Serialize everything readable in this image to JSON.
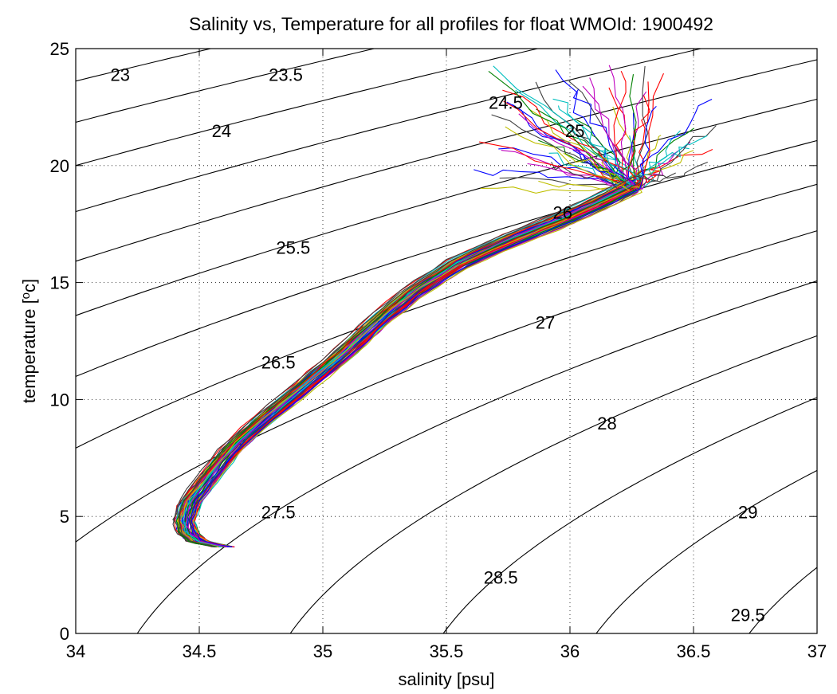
{
  "chart_data": {
    "type": "line",
    "title": "Salinity vs, Temperature for all profiles for float WMOId: 1900492",
    "xlabel": "salinity [psu]",
    "ylabel_parts": [
      "temperature [",
      "o",
      "c]"
    ],
    "xlim": [
      34,
      37
    ],
    "ylim": [
      0,
      25
    ],
    "xticks": [
      34,
      34.5,
      35,
      35.5,
      36,
      36.5,
      37
    ],
    "xtick_labels": [
      "34",
      "34.5",
      "35",
      "35.5",
      "36",
      "36.5",
      "37"
    ],
    "yticks": [
      0,
      5,
      10,
      15,
      20,
      25
    ],
    "ytick_labels": [
      "0",
      "5",
      "10",
      "15",
      "20",
      "25"
    ],
    "grid": true,
    "grid_style": "dotted",
    "density_contours": [
      {
        "sigma": 23,
        "label": "23",
        "label_pos": [
          34.18,
          23.9
        ]
      },
      {
        "sigma": 23.5,
        "label": "23.5",
        "label_pos": [
          34.85,
          23.9
        ]
      },
      {
        "sigma": 24,
        "label": "24",
        "label_pos": [
          34.59,
          21.5
        ]
      },
      {
        "sigma": 24.5,
        "label": "24.5",
        "label_pos": [
          35.74,
          22.7
        ]
      },
      {
        "sigma": 25,
        "label": "25",
        "label_pos": [
          36.02,
          21.5
        ]
      },
      {
        "sigma": 25.5,
        "label": "25.5",
        "label_pos": [
          34.88,
          16.5
        ]
      },
      {
        "sigma": 26,
        "label": "26",
        "label_pos": [
          35.97,
          18.0
        ]
      },
      {
        "sigma": 26.5,
        "label": "26.5",
        "label_pos": [
          34.82,
          11.6
        ]
      },
      {
        "sigma": 27,
        "label": "27",
        "label_pos": [
          35.9,
          13.3
        ]
      },
      {
        "sigma": 27.5,
        "label": "27.5",
        "label_pos": [
          34.82,
          5.2
        ]
      },
      {
        "sigma": 28,
        "label": "28",
        "label_pos": [
          36.15,
          9.0
        ]
      },
      {
        "sigma": 28.5,
        "label": "28.5",
        "label_pos": [
          35.72,
          2.4
        ]
      },
      {
        "sigma": 29,
        "label": "29",
        "label_pos": [
          36.72,
          5.2
        ]
      },
      {
        "sigma": 29.5,
        "label": "29.5",
        "label_pos": [
          36.72,
          0.8
        ]
      }
    ],
    "series_colors": [
      "#0000ff",
      "#008000",
      "#ff0000",
      "#00bfbf",
      "#bf00bf",
      "#bfbf00",
      "#404040"
    ],
    "profile_count": 70,
    "ts_mean_curve": [
      [
        34.6,
        3.7
      ],
      [
        34.5,
        3.9
      ],
      [
        34.45,
        4.3
      ],
      [
        34.44,
        4.9
      ],
      [
        34.47,
        5.7
      ],
      [
        34.55,
        6.8
      ],
      [
        34.64,
        8.0
      ],
      [
        34.78,
        9.3
      ],
      [
        34.93,
        10.6
      ],
      [
        35.08,
        11.9
      ],
      [
        35.22,
        13.3
      ],
      [
        35.37,
        14.6
      ],
      [
        35.55,
        15.8
      ],
      [
        35.76,
        16.8
      ],
      [
        35.95,
        17.6
      ],
      [
        36.12,
        18.4
      ],
      [
        36.25,
        19.1
      ]
    ],
    "surface_cloud": {
      "s_range": [
        35.6,
        36.6
      ],
      "t_range": [
        17.2,
        24.3
      ]
    }
  }
}
